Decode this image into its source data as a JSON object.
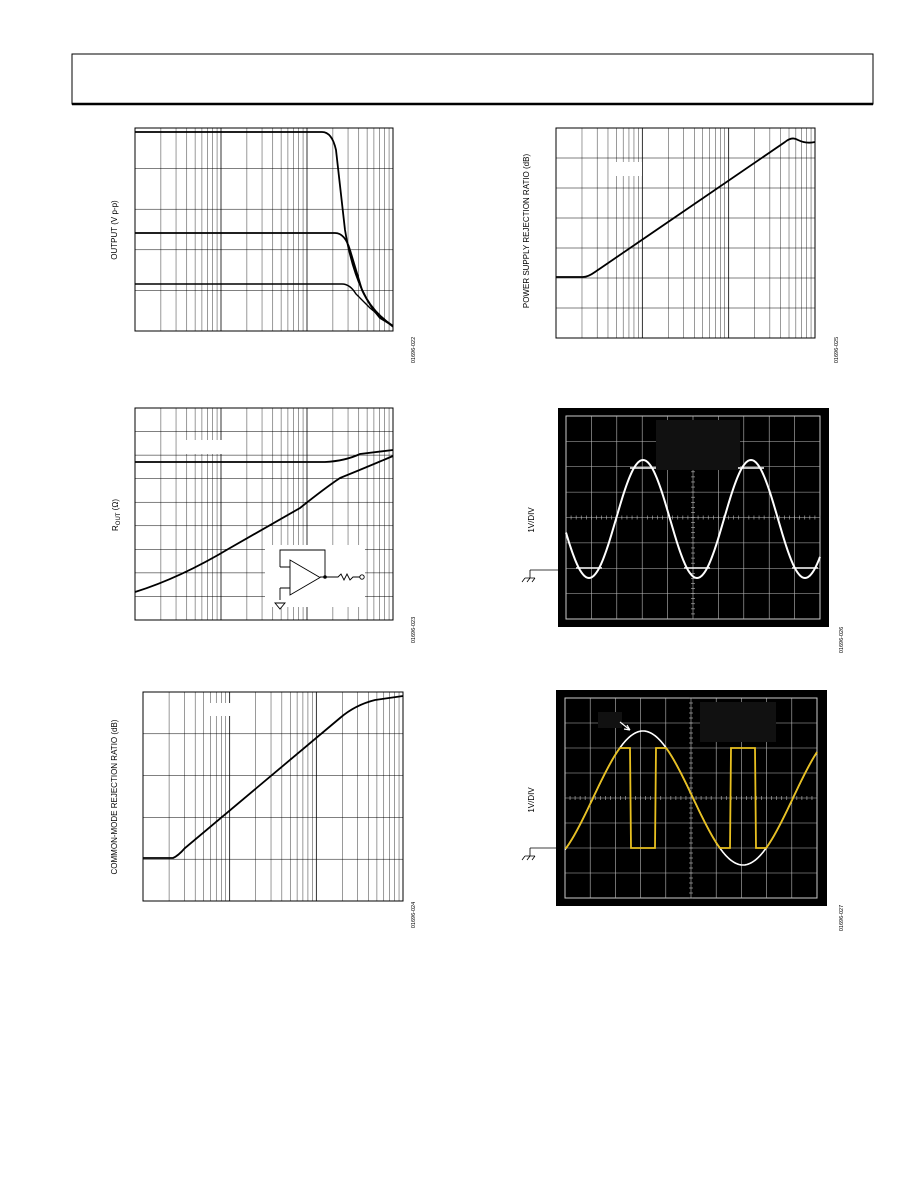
{
  "figures": [
    {
      "y_label": "OUTPUT (V p-p)",
      "code": "01696-022"
    },
    {
      "y_label": "POWER SUPPLY REJECTION RATIO (dB)",
      "code": "01696-025"
    },
    {
      "y_label_main": "R",
      "y_label_sub": "OUT",
      "y_label_unit": " (Ω)",
      "code": "01696-023"
    },
    {
      "y_label": "1V/DIV",
      "code": "01696-026"
    },
    {
      "y_label": "COMMON-MODE REJECTION RATIO (dB)",
      "code": "01696-024"
    },
    {
      "y_label": "1V/DIV",
      "code": "01696-027"
    }
  ]
}
